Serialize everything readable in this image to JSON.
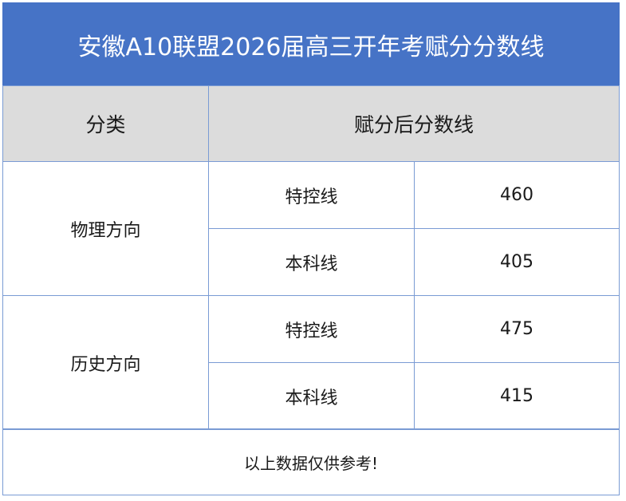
{
  "header": {
    "title": "安徽A10联盟2026届高三开年考赋分分数线"
  },
  "table": {
    "columns": [
      "分类",
      "赋分后分数线"
    ],
    "groups": [
      {
        "category": "物理方向",
        "rows": [
          [
            "特控线",
            460
          ],
          [
            "本科线",
            405
          ]
        ]
      },
      {
        "category": "历史方向",
        "rows": [
          [
            "特控线",
            475
          ],
          [
            "本科线",
            415
          ]
        ]
      }
    ],
    "note": "以上数据仅供参考!"
  }
}
